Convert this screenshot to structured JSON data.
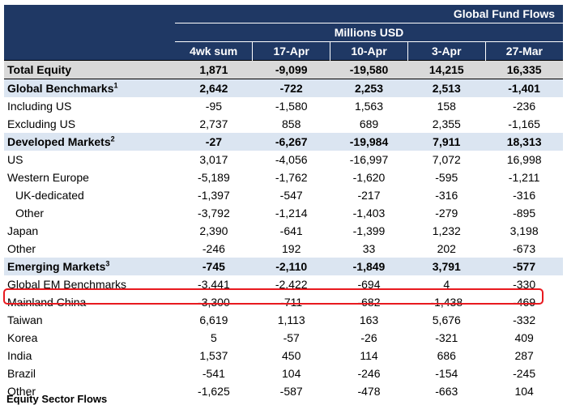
{
  "header": {
    "title": "Global Fund Flows",
    "unit": "Millions USD",
    "columns": [
      "4wk sum",
      "17-Apr",
      "10-Apr",
      "3-Apr",
      "27-Mar"
    ]
  },
  "rows": [
    {
      "label": "Total Equity",
      "sup": "",
      "type": "total",
      "values": [
        "1,871",
        "-9,099",
        "-19,580",
        "14,215",
        "16,335"
      ]
    },
    {
      "label": "Global Benchmarks",
      "sup": "1",
      "type": "section",
      "values": [
        "2,642",
        "-722",
        "2,253",
        "2,513",
        "-1,401"
      ]
    },
    {
      "label": "Including US",
      "sup": "",
      "type": "normal",
      "values": [
        "-95",
        "-1,580",
        "1,563",
        "158",
        "-236"
      ]
    },
    {
      "label": "Excluding US",
      "sup": "",
      "type": "normal",
      "values": [
        "2,737",
        "858",
        "689",
        "2,355",
        "-1,165"
      ]
    },
    {
      "label": "Developed Markets",
      "sup": "2",
      "type": "section",
      "values": [
        "-27",
        "-6,267",
        "-19,984",
        "7,911",
        "18,313"
      ]
    },
    {
      "label": "US",
      "sup": "",
      "type": "normal",
      "values": [
        "3,017",
        "-4,056",
        "-16,997",
        "7,072",
        "16,998"
      ]
    },
    {
      "label": "Western Europe",
      "sup": "",
      "type": "normal",
      "values": [
        "-5,189",
        "-1,762",
        "-1,620",
        "-595",
        "-1,211"
      ]
    },
    {
      "label": "UK-dedicated",
      "sup": "",
      "type": "indent",
      "values": [
        "-1,397",
        "-547",
        "-217",
        "-316",
        "-316"
      ]
    },
    {
      "label": "Other",
      "sup": "",
      "type": "indent",
      "values": [
        "-3,792",
        "-1,214",
        "-1,403",
        "-279",
        "-895"
      ]
    },
    {
      "label": "Japan",
      "sup": "",
      "type": "normal",
      "values": [
        "2,390",
        "-641",
        "-1,399",
        "1,232",
        "3,198"
      ]
    },
    {
      "label": "Other",
      "sup": "",
      "type": "normal",
      "values": [
        "-246",
        "192",
        "33",
        "202",
        "-673"
      ]
    },
    {
      "label": "Emerging Markets",
      "sup": "3",
      "type": "section",
      "values": [
        "-745",
        "-2,110",
        "-1,849",
        "3,791",
        "-577"
      ]
    },
    {
      "label": "Global EM Benchmarks",
      "sup": "",
      "type": "normal",
      "values": [
        "-3,441",
        "-2,422",
        "-694",
        "4",
        "-330"
      ]
    },
    {
      "label": "Mainland China",
      "sup": "",
      "type": "normal",
      "values": [
        "-3,300",
        "-711",
        "-682",
        "-1,438",
        "-469"
      ]
    },
    {
      "label": "Taiwan",
      "sup": "",
      "type": "normal",
      "values": [
        "6,619",
        "1,113",
        "163",
        "5,676",
        "-332"
      ]
    },
    {
      "label": "Korea",
      "sup": "",
      "type": "normal",
      "values": [
        "5",
        "-57",
        "-26",
        "-321",
        "409"
      ]
    },
    {
      "label": "India",
      "sup": "",
      "type": "normal",
      "values": [
        "1,537",
        "450",
        "114",
        "686",
        "287"
      ]
    },
    {
      "label": "Brazil",
      "sup": "",
      "type": "normal",
      "values": [
        "-541",
        "104",
        "-246",
        "-154",
        "-245"
      ]
    },
    {
      "label": "Other",
      "sup": "",
      "type": "normal",
      "values": [
        "-1,625",
        "-587",
        "-478",
        "-663",
        "104"
      ]
    }
  ],
  "highlight_row": "Mainland China",
  "footer": "Equity Sector Flows"
}
